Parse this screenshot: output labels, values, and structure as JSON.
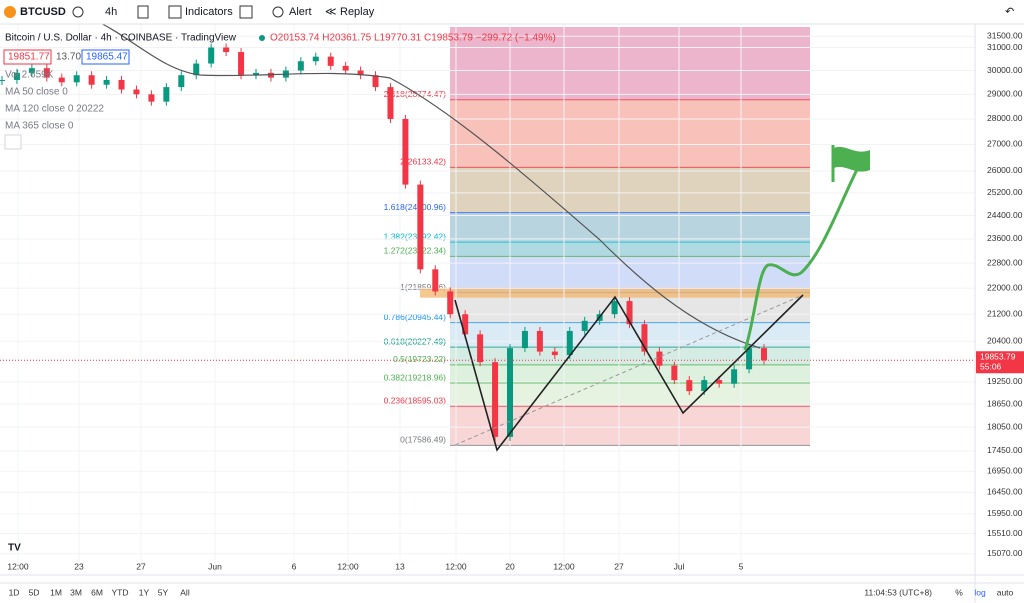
{
  "toolbar": {
    "symbol": "BTCUSD",
    "interval": "4h",
    "buttons": [
      "Indicators",
      "Alert",
      "Replay"
    ]
  },
  "legend": {
    "title": "Bitcoin / U.S. Dollar · 4h · COINBASE · TradingView",
    "ohlc": "O20153.74 H20361.75 L19770.31 C19853.79 −299.72 (−1.49%)",
    "bid": "19851.77",
    "spread": "13.70",
    "ask": "19865.47",
    "indicators": [
      "Vol 2.659K",
      "MA 50 close 0",
      "MA 120 close 0 20222",
      "MA 365 close 0"
    ]
  },
  "price_axis": {
    "log": true,
    "ylim": [
      14620,
      31920
    ],
    "ticks": [
      {
        "value": 31500,
        "label": "31500.00"
      },
      {
        "value": 31000,
        "label": "31000.00"
      },
      {
        "value": 30000,
        "label": "30000.00"
      },
      {
        "value": 29000,
        "label": "29000.00"
      },
      {
        "value": 28000,
        "label": "28000.00"
      },
      {
        "value": 27000,
        "label": "27000.00"
      },
      {
        "value": 26000,
        "label": "26000.00"
      },
      {
        "value": 25200,
        "label": "25200.00"
      },
      {
        "value": 24400,
        "label": "24400.00"
      },
      {
        "value": 23600,
        "label": "23600.00"
      },
      {
        "value": 22800,
        "label": "22800.00"
      },
      {
        "value": 22000,
        "label": "22000.00"
      },
      {
        "value": 21200,
        "label": "21200.00"
      },
      {
        "value": 20400,
        "label": "20400.00"
      },
      {
        "value": 19250,
        "label": "19250.00"
      },
      {
        "value": 18650,
        "label": "18650.00"
      },
      {
        "value": 18050,
        "label": "18050.00"
      },
      {
        "value": 17450,
        "label": "17450.00"
      },
      {
        "value": 16950,
        "label": "16950.00"
      },
      {
        "value": 16450,
        "label": "16450.00"
      },
      {
        "value": 15950,
        "label": "15950.00"
      },
      {
        "value": 15510,
        "label": "15510.00"
      },
      {
        "value": 15070,
        "label": "15070.00"
      }
    ]
  },
  "current_price": {
    "value": 19853.79,
    "label": "19853.79",
    "countdown": "55:06"
  },
  "fib_levels": [
    {
      "value": 17586.49,
      "label": "0(17586.49)",
      "color": "#f7cfcf",
      "text_color": "#787b86"
    },
    {
      "value": 18595.03,
      "label": "0.236(18595.03)",
      "color": "#e3f1dc",
      "text_color": "#f23645"
    },
    {
      "value": 19218.96,
      "label": "0.382(19218.96)",
      "color": "#d8eed8",
      "text_color": "#4caf50"
    },
    {
      "value": 19723.22,
      "label": "0.5(19723.22)",
      "color": "#cde9df",
      "text_color": "#4caf50"
    },
    {
      "value": 20227.49,
      "label": "0.618(20227.49)",
      "color": "#d5e8f4",
      "text_color": "#089981"
    },
    {
      "value": 20945.44,
      "label": "0.786(20945.44)",
      "color": "#e2e2e2",
      "text_color": "#2196f3"
    },
    {
      "value": 21859.96,
      "label": "1(21859.96)",
      "color": "#c9d6f8",
      "text_color": "#787b86"
    },
    {
      "value": 23022.34,
      "label": "1.272(23022.34)",
      "color": "#a2d2dc",
      "text_color": "#4caf50"
    },
    {
      "value": 23492.42,
      "label": "1.382(23492.42)",
      "color": "#abcdd8",
      "text_color": "#00bcd4"
    },
    {
      "value": 24500.96,
      "label": "1.618(24500.96)",
      "color": "#d9cbb1",
      "text_color": "#2962ff"
    },
    {
      "value": 26133.42,
      "label": "2(26133.42)",
      "color": "#f7b6ae",
      "text_color": "#f23645"
    },
    {
      "value": 28774.47,
      "label": "2.618(28774.47)",
      "color": "#eaa8c2",
      "text_color": "#f23645"
    }
  ],
  "price_series": [
    29600,
    29900,
    30100,
    29700,
    29500,
    29800,
    29400,
    29600,
    29200,
    29000,
    28700,
    29300,
    29800,
    30300,
    31000,
    30800,
    29800,
    29900,
    29700,
    30000,
    30400,
    30600,
    30200,
    30000,
    29800,
    29300,
    28000,
    25500,
    22600,
    21900,
    21200,
    20600,
    19800,
    17800,
    20200,
    20700,
    20100,
    20000,
    20700,
    21000,
    21200,
    21600,
    20900,
    20100,
    19700,
    19300,
    19000,
    19300,
    19200,
    19600,
    20200,
    19850
  ],
  "time_axis": [
    "12:00",
    "23",
    "27",
    "Jun",
    "6",
    "12:00",
    "13",
    "12:00",
    "20",
    "12:00",
    "27",
    "Jul",
    "5"
  ],
  "bottom_bar": {
    "ranges": [
      "1D",
      "5D",
      "1M",
      "3M",
      "6M",
      "YTD",
      "1Y",
      "5Y",
      "All"
    ],
    "clock": "11:04:53 (UTC+8)",
    "options": [
      "%",
      "log",
      "auto"
    ]
  }
}
